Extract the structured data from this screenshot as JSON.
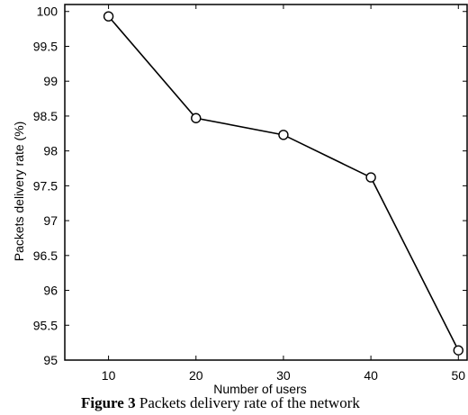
{
  "chart_data": {
    "type": "line",
    "x": [
      10,
      20,
      30,
      40,
      50
    ],
    "series": [
      {
        "values": [
          99.93,
          98.47,
          98.23,
          97.62,
          95.14
        ],
        "marker": "circle",
        "color": "#000000"
      }
    ],
    "xlabel": "Number of users",
    "ylabel": "Packets delivery rate (%)",
    "xticks": [
      10,
      20,
      30,
      40,
      50
    ],
    "yticks": [
      "95",
      "95.5",
      "96",
      "96.5",
      "97",
      "97.5",
      "98",
      "98.5",
      "99",
      "99.5",
      "100"
    ],
    "xlim": [
      5,
      51
    ],
    "ylim": [
      95,
      100.1
    ],
    "grid": false
  },
  "caption": {
    "label": "Figure 3",
    "text": "Packets delivery rate of the network"
  }
}
